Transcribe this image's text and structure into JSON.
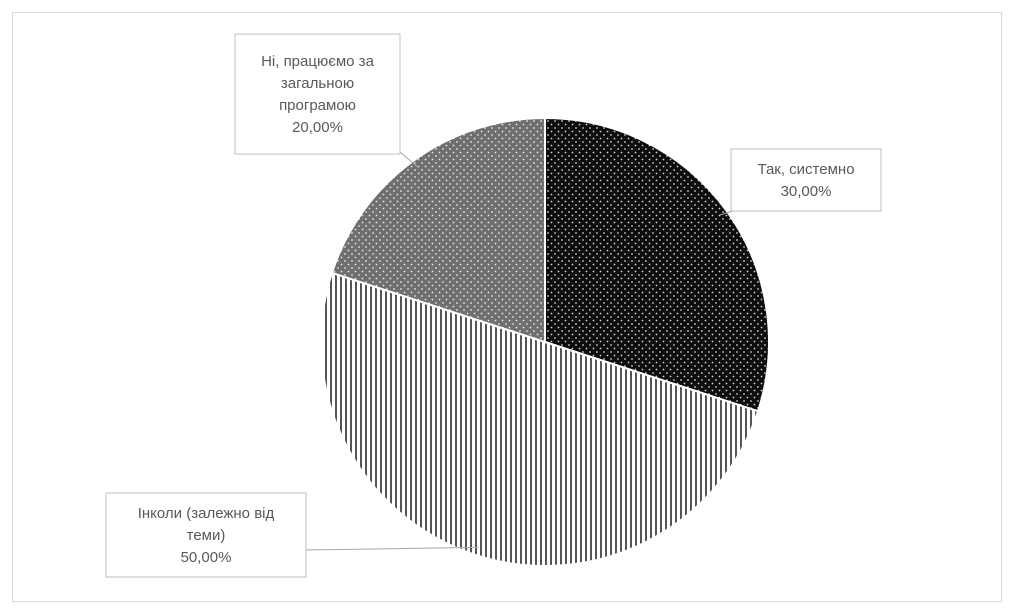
{
  "chart_data": {
    "type": "pie",
    "title": "",
    "slices": [
      {
        "label_lines": [
          "Так, системно"
        ],
        "value_label": "30,00%",
        "value": 30,
        "pattern": "dots-dark"
      },
      {
        "label_lines": [
          "Інколи (залежно від",
          "теми)"
        ],
        "value_label": "50,00%",
        "value": 50,
        "pattern": "vertical-stripes"
      },
      {
        "label_lines": [
          "Ні, працюємо за",
          "загальною",
          "програмою"
        ],
        "value_label": "20,00%",
        "value": 20,
        "pattern": "dots-grey"
      }
    ],
    "start_angle_deg": 0,
    "direction": "clockwise",
    "legend": "none",
    "data_labels": "callout"
  }
}
